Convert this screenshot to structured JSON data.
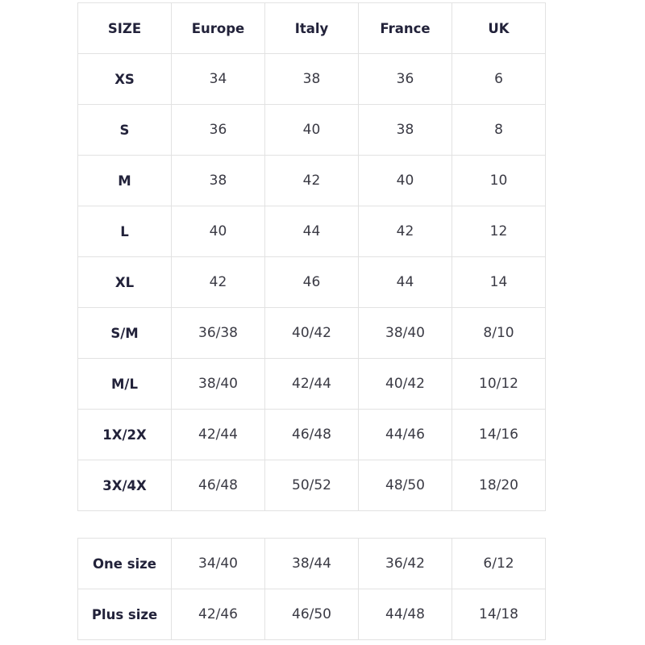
{
  "size_chart": {
    "header": [
      "SIZE",
      "Europe",
      "Italy",
      "France",
      "UK"
    ],
    "rows": [
      [
        "XS",
        "34",
        "38",
        "36",
        "6"
      ],
      [
        "S",
        "36",
        "40",
        "38",
        "8"
      ],
      [
        "M",
        "38",
        "42",
        "40",
        "10"
      ],
      [
        "L",
        "40",
        "44",
        "42",
        "12"
      ],
      [
        "XL",
        "42",
        "46",
        "44",
        "14"
      ],
      [
        "S/M",
        "36/38",
        "40/42",
        "38/40",
        "8/10"
      ],
      [
        "M/L",
        "38/40",
        "42/44",
        "40/42",
        "10/12"
      ],
      [
        "1X/2X",
        "42/44",
        "46/48",
        "44/46",
        "14/16"
      ],
      [
        "3X/4X",
        "46/48",
        "50/52",
        "48/50",
        "18/20"
      ]
    ]
  },
  "special_sizes": {
    "rows": [
      [
        "One size",
        "34/40",
        "38/44",
        "36/42",
        "6/12"
      ],
      [
        "Plus size",
        "42/46",
        "46/50",
        "44/48",
        "14/18"
      ]
    ]
  }
}
